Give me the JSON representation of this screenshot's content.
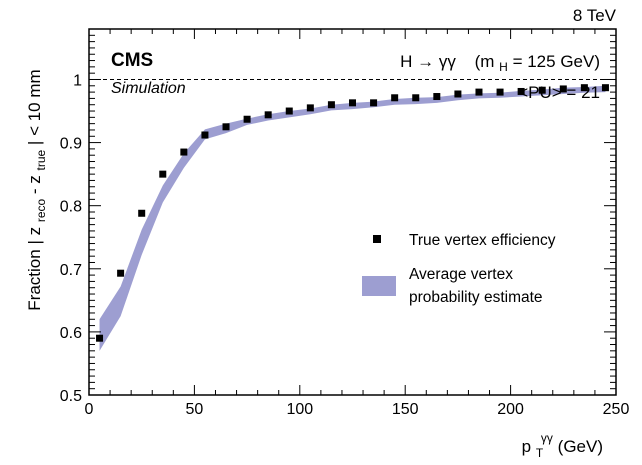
{
  "chart_data": {
    "type": "scatter",
    "energy_label": "8 TeV",
    "experiment": "CMS",
    "experiment_sub": "Simulation",
    "process_label": "H → γγ",
    "mass_label": "(m",
    "mass_sub": "H",
    "mass_value": " = 125 GeV)",
    "pileup_label": "<PU> = 21",
    "xlabel_main": "p",
    "xlabel_sub": "T",
    "xlabel_sup": "γγ",
    "xlabel_unit": " (GeV)",
    "ylabel": "Fraction | z",
    "ylabel_sub1": "reco",
    "ylabel_mid": " - z",
    "ylabel_sub2": "true",
    "ylabel_end": " | < 10 mm",
    "xlim": [
      0,
      250
    ],
    "ylim": [
      0.5,
      1.08
    ],
    "x_ticks": [
      0,
      50,
      100,
      150,
      200,
      250
    ],
    "y_ticks": [
      0.5,
      0.6,
      0.7,
      0.8,
      0.9,
      1
    ],
    "reference_line_y": 1,
    "legend": {
      "placement": "center-right",
      "points_label": "True vertex efficiency",
      "band_label_line1": "Average vertex",
      "band_label_line2": "probability estimate"
    },
    "points": {
      "name": "True vertex efficiency",
      "x": [
        5,
        15,
        25,
        35,
        45,
        55,
        65,
        75,
        85,
        95,
        105,
        115,
        125,
        135,
        145,
        155,
        165,
        175,
        185,
        195,
        205,
        215,
        225,
        235,
        245
      ],
      "y": [
        0.59,
        0.693,
        0.788,
        0.85,
        0.885,
        0.912,
        0.925,
        0.937,
        0.944,
        0.95,
        0.955,
        0.96,
        0.963,
        0.963,
        0.971,
        0.971,
        0.973,
        0.977,
        0.98,
        0.98,
        0.981,
        0.983,
        0.985,
        0.987,
        0.987
      ]
    },
    "band": {
      "name": "Average vertex probability estimate",
      "color": "#9d9ed1",
      "x": [
        5,
        15,
        25,
        35,
        45,
        55,
        65,
        75,
        85,
        95,
        105,
        115,
        125,
        135,
        145,
        155,
        165,
        175,
        185,
        195,
        205,
        215,
        225,
        235,
        245
      ],
      "low": [
        0.57,
        0.625,
        0.722,
        0.805,
        0.86,
        0.905,
        0.915,
        0.928,
        0.935,
        0.94,
        0.945,
        0.951,
        0.953,
        0.956,
        0.96,
        0.961,
        0.963,
        0.967,
        0.97,
        0.971,
        0.973,
        0.975,
        0.977,
        0.979,
        0.98
      ],
      "high": [
        0.62,
        0.672,
        0.762,
        0.832,
        0.883,
        0.921,
        0.93,
        0.938,
        0.945,
        0.95,
        0.954,
        0.96,
        0.963,
        0.965,
        0.969,
        0.971,
        0.972,
        0.976,
        0.978,
        0.979,
        0.982,
        0.984,
        0.987,
        0.988,
        0.99
      ]
    }
  }
}
